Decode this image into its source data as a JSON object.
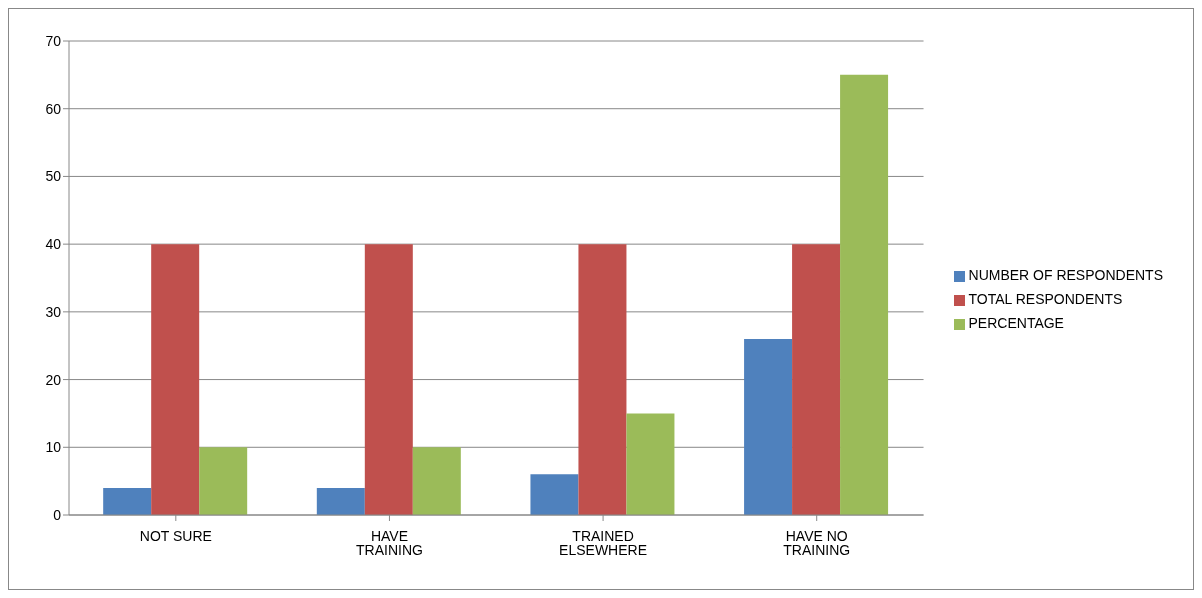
{
  "chart_data": {
    "type": "bar",
    "categories": [
      "NOT SURE",
      "HAVE TRAINING",
      "TRAINED ELSEWHERE",
      "HAVE NO TRAINING"
    ],
    "series": [
      {
        "name": "NUMBER OF RESPONDENTS",
        "color": "#4f81bd",
        "values": [
          4,
          4,
          6,
          26
        ]
      },
      {
        "name": "TOTAL RESPONDENTS",
        "color": "#c0504d",
        "values": [
          40,
          40,
          40,
          40
        ]
      },
      {
        "name": "PERCENTAGE",
        "color": "#9bbb59",
        "values": [
          10,
          10,
          15,
          65
        ]
      }
    ],
    "ylim": [
      0,
      70
    ],
    "yticks": [
      0,
      10,
      20,
      30,
      40,
      50,
      60,
      70
    ],
    "grid": "y",
    "legend": "right"
  }
}
